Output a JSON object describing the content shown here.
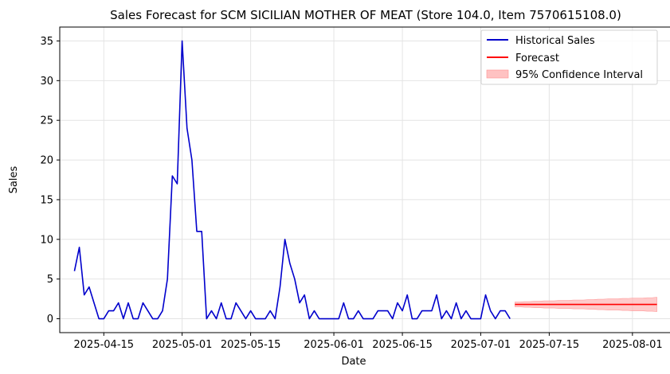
{
  "chart_data": {
    "type": "line",
    "title": "Sales Forecast for SCM SICILIAN MOTHER OF MEAT (Store 104.0, Item 7570615108.0)",
    "xlabel": "Date",
    "ylabel": "Sales",
    "xlim": [
      "2025-04-06",
      "2025-08-09"
    ],
    "ylim": [
      -1.75,
      36.75
    ],
    "x_ticks": [
      "2025-04-15",
      "2025-05-01",
      "2025-05-15",
      "2025-06-01",
      "2025-06-15",
      "2025-07-01",
      "2025-07-15",
      "2025-08-01"
    ],
    "y_ticks": [
      0,
      5,
      10,
      15,
      20,
      25,
      30,
      35
    ],
    "grid": true,
    "legend_position": "upper-right",
    "colors": {
      "historical": "#0000cc",
      "forecast": "#ff0000",
      "interval": "#ffb3b3"
    },
    "series": [
      {
        "name": "Historical Sales",
        "start_date": "2025-04-09",
        "values": [
          6,
          9,
          3,
          4,
          2,
          0,
          0,
          1,
          1,
          2,
          0,
          2,
          0,
          0,
          2,
          1,
          0,
          0,
          1,
          5,
          18,
          17,
          35,
          24,
          20,
          11,
          11,
          0,
          1,
          0,
          2,
          0,
          0,
          2,
          1,
          0,
          1,
          0,
          0,
          0,
          1,
          0,
          4,
          10,
          7,
          5,
          2,
          3,
          0,
          1,
          0,
          0,
          0,
          0,
          0,
          2,
          0,
          0,
          1,
          0,
          0,
          0,
          1,
          1,
          1,
          0,
          2,
          1,
          3,
          0,
          0,
          1,
          1,
          1,
          3,
          0,
          1,
          0,
          2,
          0,
          1,
          0,
          0,
          0,
          3,
          1,
          0,
          1,
          1,
          0
        ]
      },
      {
        "name": "Forecast",
        "start_date": "2025-07-08",
        "values": [
          1.8,
          1.8,
          1.8,
          1.8,
          1.8,
          1.8,
          1.8,
          1.8,
          1.8,
          1.8,
          1.8,
          1.8,
          1.8,
          1.8,
          1.8,
          1.8,
          1.8,
          1.8,
          1.8,
          1.8,
          1.8,
          1.8,
          1.8,
          1.8,
          1.8,
          1.8,
          1.8,
          1.8,
          1.8,
          1.8
        ]
      },
      {
        "name": "95% Confidence Interval",
        "start_date": "2025-07-08",
        "lower": [
          1.5,
          1.5,
          1.45,
          1.45,
          1.4,
          1.4,
          1.35,
          1.35,
          1.35,
          1.3,
          1.3,
          1.3,
          1.25,
          1.25,
          1.25,
          1.2,
          1.2,
          1.15,
          1.15,
          1.1,
          1.1,
          1.1,
          1.05,
          1.05,
          1.0,
          1.0,
          1.0,
          0.95,
          0.95,
          0.9
        ],
        "upper": [
          2.1,
          2.1,
          2.15,
          2.15,
          2.2,
          2.2,
          2.25,
          2.25,
          2.25,
          2.3,
          2.3,
          2.3,
          2.35,
          2.35,
          2.35,
          2.4,
          2.4,
          2.45,
          2.45,
          2.5,
          2.5,
          2.5,
          2.55,
          2.55,
          2.6,
          2.6,
          2.6,
          2.65,
          2.65,
          2.7
        ]
      }
    ]
  }
}
